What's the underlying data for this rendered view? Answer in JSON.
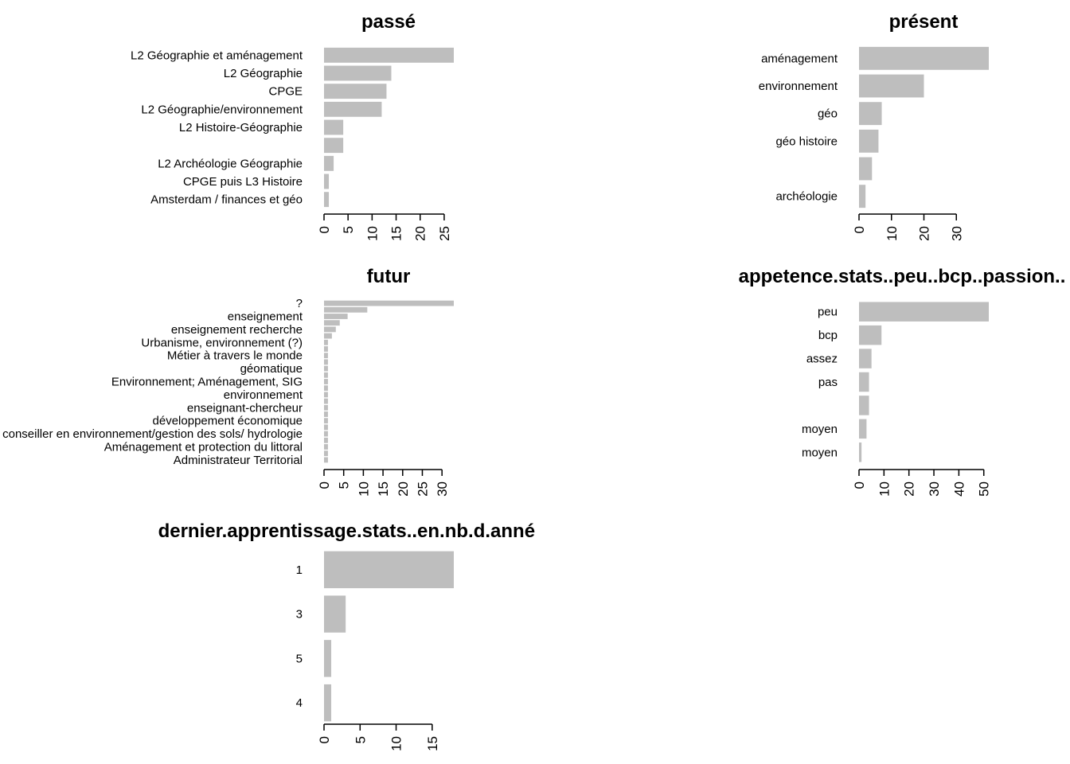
{
  "chart_data": [
    {
      "type": "bar",
      "orientation": "horizontal",
      "title": "passé",
      "categories": [
        "L2 Géographie et aménagement",
        "L2 Géographie",
        "CPGE",
        "L2 Géographie/environnement",
        "L2 Histoire-Géographie",
        "",
        "L2 Archéologie Géographie",
        "CPGE  puis L3 Histoire ",
        "Amsterdam / finances et géo"
      ],
      "values": [
        27,
        14,
        13,
        12,
        4,
        4,
        2,
        1,
        1
      ],
      "xlim": [
        0,
        27
      ],
      "ticks": [
        0,
        5,
        10,
        15,
        20,
        25
      ]
    },
    {
      "type": "bar",
      "orientation": "horizontal",
      "title": "présent",
      "categories": [
        "aménagement",
        "environnement",
        "géo",
        "géo histoire",
        "",
        "archéologie"
      ],
      "values": [
        40,
        20,
        7,
        6,
        4,
        2
      ],
      "xlim": [
        0,
        40
      ],
      "ticks": [
        0,
        10,
        20,
        30
      ]
    },
    {
      "type": "bar",
      "orientation": "horizontal",
      "title": "futur",
      "categories": [
        "?",
        "",
        "enseignement",
        "",
        "enseignement recherche",
        "",
        "Urbanisme, environnement (?)",
        "",
        "Métier à travers le monde ",
        "",
        "géomatique",
        "",
        "Environnement; Aménagement, SIG",
        "",
        "environnement",
        "",
        "enseignant-chercheur",
        "",
        "développement économique ",
        "",
        "conseiller en environnement/gestion des sols/ hydrologie",
        "",
        "Aménagement et protection du littoral",
        "",
        "Administrateur Territorial"
      ],
      "values": [
        33,
        11,
        6,
        4,
        3,
        2,
        1,
        1,
        1,
        1,
        1,
        1,
        1,
        1,
        1,
        1,
        1,
        1,
        1,
        1,
        1,
        1,
        1,
        1,
        1
      ],
      "xlim": [
        0,
        33
      ],
      "ticks": [
        0,
        5,
        10,
        15,
        20,
        25,
        30
      ]
    },
    {
      "type": "bar",
      "orientation": "horizontal",
      "title": "appetence.stats..peu..bcp..passion..",
      "categories": [
        "peu",
        "bcp",
        "assez",
        "pas",
        "",
        "moyen",
        "moyen "
      ],
      "values": [
        52,
        9,
        5,
        4,
        4,
        3,
        1
      ],
      "xlim": [
        0,
        52
      ],
      "ticks": [
        0,
        10,
        20,
        30,
        40,
        50
      ]
    },
    {
      "type": "bar",
      "orientation": "horizontal",
      "title": "dernier.apprentissage.stats..en.nb.d.années.",
      "categories": [
        "1",
        "3",
        "5",
        "4"
      ],
      "values": [
        18,
        3,
        1,
        1
      ],
      "xlim": [
        0,
        18
      ],
      "ticks": [
        0,
        5,
        10,
        15
      ]
    }
  ]
}
